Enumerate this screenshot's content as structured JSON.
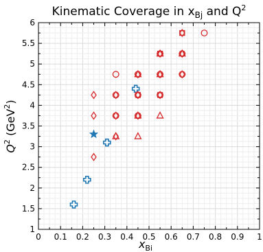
{
  "chart_data": {
    "type": "scatter",
    "title": "Kinematic Coverage in x",
    "title_sub": "Bj",
    "title_mid": " and Q",
    "title_sup": "2",
    "xlabel": "x",
    "xlabel_sub": "Bi",
    "ylabel_main": "Q",
    "ylabel_sup": "2",
    "ylabel_unit": " (GeV",
    "ylabel_unit_sup": "2",
    "ylabel_close": ")",
    "xlim": [
      0,
      1
    ],
    "ylim": [
      1,
      6
    ],
    "xticks": [
      "0",
      "0.1",
      "0.2",
      "0.3",
      "0.4",
      "0.5",
      "0.6",
      "0.7",
      "0.8",
      "0.9",
      "1"
    ],
    "yticks": [
      "1",
      "1.5",
      "2",
      "2.5",
      "3",
      "3.5",
      "4",
      "4.5",
      "5",
      "5.5",
      "6"
    ],
    "grid": true,
    "colors": {
      "red": "#d62728",
      "blue": "#1f77b4"
    },
    "series": [
      {
        "marker": "cross",
        "color": "#1f77b4",
        "points": [
          [
            0.16,
            1.6
          ],
          [
            0.22,
            2.2
          ],
          [
            0.31,
            3.1
          ],
          [
            0.44,
            4.4
          ]
        ]
      },
      {
        "marker": "star",
        "color": "#1f77b4",
        "points": [
          [
            0.25,
            3.3
          ]
        ]
      },
      {
        "marker": "diamond",
        "color": "#d62728",
        "points": [
          [
            0.25,
            2.75
          ],
          [
            0.25,
            3.75
          ],
          [
            0.25,
            4.25
          ],
          [
            0.35,
            3.25
          ],
          [
            0.35,
            3.75
          ],
          [
            0.35,
            4.25
          ],
          [
            0.45,
            3.75
          ],
          [
            0.45,
            4.25
          ],
          [
            0.45,
            4.75
          ],
          [
            0.55,
            4.25
          ],
          [
            0.55,
            4.75
          ],
          [
            0.55,
            5.25
          ],
          [
            0.65,
            4.75
          ],
          [
            0.65,
            5.25
          ],
          [
            0.65,
            5.75
          ]
        ]
      },
      {
        "marker": "circle",
        "color": "#d62728",
        "points": [
          [
            0.35,
            3.75
          ],
          [
            0.35,
            4.25
          ],
          [
            0.35,
            4.75
          ],
          [
            0.45,
            3.75
          ],
          [
            0.45,
            4.25
          ],
          [
            0.45,
            4.75
          ],
          [
            0.55,
            4.25
          ],
          [
            0.55,
            4.75
          ],
          [
            0.55,
            5.25
          ],
          [
            0.65,
            4.75
          ],
          [
            0.65,
            5.25
          ],
          [
            0.75,
            5.75
          ]
        ]
      },
      {
        "marker": "triangle",
        "color": "#d62728",
        "points": [
          [
            0.35,
            3.25
          ],
          [
            0.45,
            3.25
          ],
          [
            0.45,
            3.75
          ],
          [
            0.45,
            4.75
          ],
          [
            0.55,
            3.75
          ],
          [
            0.55,
            4.75
          ],
          [
            0.55,
            5.25
          ],
          [
            0.65,
            5.25
          ]
        ]
      },
      {
        "marker": "square",
        "color": "#d62728",
        "points": [
          [
            0.45,
            4.25
          ],
          [
            0.55,
            4.25
          ],
          [
            0.55,
            5.25
          ],
          [
            0.65,
            5.75
          ]
        ]
      }
    ]
  }
}
